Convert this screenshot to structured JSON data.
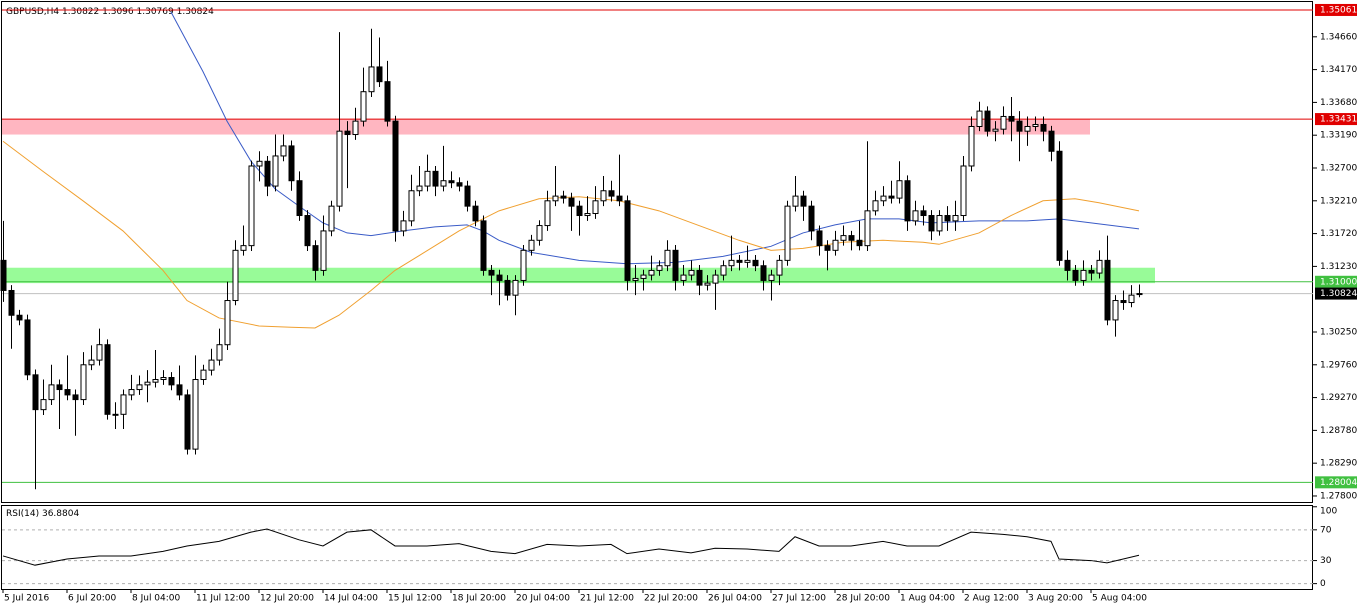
{
  "chart_data": {
    "type": "candlestick",
    "symbol": "GBPUSD,H4",
    "categories": [
      "5 Jul 2016",
      null,
      null,
      null,
      null,
      null,
      null,
      null,
      "6 Jul 20:00",
      null,
      null,
      null,
      null,
      null,
      null,
      null,
      "8 Jul 04:00",
      null,
      null,
      null,
      null,
      null,
      null,
      null,
      "11 Jul 12:00",
      null,
      null,
      null,
      null,
      null,
      null,
      null,
      "12 Jul 20:00",
      null,
      null,
      null,
      null,
      null,
      null,
      null,
      "14 Jul 04:00",
      null,
      null,
      null,
      null,
      null,
      null,
      null,
      "15 Jul 12:00",
      null,
      null,
      null,
      null,
      null,
      null,
      null,
      "18 Jul 20:00",
      null,
      null,
      null,
      null,
      null,
      null,
      null,
      "20 Jul 04:00",
      null,
      null,
      null,
      null,
      null,
      null,
      null,
      "21 Jul 12:00",
      null,
      null,
      null,
      null,
      null,
      null,
      null,
      "22 Jul 20:00",
      null,
      null,
      null,
      null,
      null,
      null,
      null,
      "26 Jul 04:00",
      null,
      null,
      null,
      null,
      null,
      null,
      null,
      "27 Jul 12:00",
      null,
      null,
      null,
      null,
      null,
      null,
      null,
      "28 Jul 20:00",
      null,
      null,
      null,
      null,
      null,
      null,
      null,
      "1 Aug 04:00",
      null,
      null,
      null,
      null,
      null,
      null,
      null,
      "2 Aug 12:00",
      null,
      null,
      null,
      null,
      null,
      null,
      null,
      "3 Aug 20:00",
      null,
      null,
      null,
      null,
      null,
      null,
      null,
      "5 Aug 04:00",
      null,
      null,
      null,
      null,
      null,
      null
    ],
    "candles": [
      [
        1.3132,
        1.3191,
        1.307,
        1.3087
      ],
      [
        1.3087,
        1.3095,
        1.3,
        1.305
      ],
      [
        1.305,
        1.3058,
        1.3035,
        1.3043
      ],
      [
        1.3043,
        1.3051,
        1.2953,
        1.2961
      ],
      [
        1.2961,
        1.2969,
        1.279,
        1.2909
      ],
      [
        1.2909,
        1.2954,
        1.2901,
        1.2924
      ],
      [
        1.2924,
        1.2976,
        1.2916,
        1.2946
      ],
      [
        1.2946,
        1.2954,
        1.288,
        1.2939
      ],
      [
        1.2939,
        1.299,
        1.2923,
        1.2931
      ],
      [
        1.2931,
        1.2939,
        1.287,
        1.2924
      ],
      [
        1.2924,
        1.2995,
        1.2916,
        1.2976
      ],
      [
        1.2976,
        1.3005,
        1.2968,
        1.2983
      ],
      [
        1.2983,
        1.303,
        1.2975,
        1.3006
      ],
      [
        1.3006,
        1.3014,
        1.2894,
        1.2902
      ],
      [
        1.2902,
        1.292,
        1.288,
        1.2902
      ],
      [
        1.2902,
        1.2939,
        1.288,
        1.2931
      ],
      [
        1.2931,
        1.2961,
        1.2923,
        1.2939
      ],
      [
        1.2939,
        1.296,
        1.2931,
        1.2946
      ],
      [
        1.2946,
        1.2968,
        1.292,
        1.295
      ],
      [
        1.295,
        1.2998,
        1.2942,
        1.2954
      ],
      [
        1.2954,
        1.2968,
        1.2946,
        1.2957
      ],
      [
        1.2957,
        1.2965,
        1.2938,
        1.2946
      ],
      [
        1.2946,
        1.2975,
        1.2923,
        1.2931
      ],
      [
        1.2931,
        1.2939,
        1.2842,
        1.285
      ],
      [
        1.285,
        1.299,
        1.2842,
        1.2954
      ],
      [
        1.2954,
        1.2976,
        1.2946,
        1.2968
      ],
      [
        1.2968,
        1.3,
        1.296,
        1.2983
      ],
      [
        1.2983,
        1.303,
        1.2975,
        1.3006
      ],
      [
        1.3006,
        1.31,
        1.2998,
        1.3072
      ],
      [
        1.3072,
        1.3162,
        1.3065,
        1.3147
      ],
      [
        1.3147,
        1.3184,
        1.3139,
        1.3154
      ],
      [
        1.3154,
        1.3281,
        1.3146,
        1.3273
      ],
      [
        1.3273,
        1.3295,
        1.325,
        1.328
      ],
      [
        1.328,
        1.3288,
        1.3228,
        1.3243
      ],
      [
        1.3243,
        1.332,
        1.3235,
        1.3288
      ],
      [
        1.3288,
        1.332,
        1.328,
        1.3303
      ],
      [
        1.3303,
        1.3311,
        1.3236,
        1.3251
      ],
      [
        1.3251,
        1.3265,
        1.3191,
        1.3199
      ],
      [
        1.3199,
        1.3207,
        1.3146,
        1.3154
      ],
      [
        1.3154,
        1.3162,
        1.3102,
        1.3117
      ],
      [
        1.3117,
        1.3199,
        1.3109,
        1.3176
      ],
      [
        1.3176,
        1.3221,
        1.3168,
        1.3213
      ],
      [
        1.3213,
        1.3473,
        1.3205,
        1.3325
      ],
      [
        1.3325,
        1.334,
        1.324,
        1.332
      ],
      [
        1.332,
        1.336,
        1.3312,
        1.334
      ],
      [
        1.334,
        1.342,
        1.3332,
        1.3384
      ],
      [
        1.3384,
        1.3478,
        1.3376,
        1.3421
      ],
      [
        1.3421,
        1.3465,
        1.3391,
        1.3399
      ],
      [
        1.3399,
        1.343,
        1.3332,
        1.334
      ],
      [
        1.334,
        1.3348,
        1.316,
        1.3176
      ],
      [
        1.3176,
        1.3206,
        1.3168,
        1.3191
      ],
      [
        1.3191,
        1.326,
        1.3183,
        1.3236
      ],
      [
        1.3236,
        1.3273,
        1.3228,
        1.3243
      ],
      [
        1.3243,
        1.329,
        1.3235,
        1.3265
      ],
      [
        1.3265,
        1.3273,
        1.3228,
        1.3243
      ],
      [
        1.3243,
        1.3303,
        1.3235,
        1.3251
      ],
      [
        1.3251,
        1.3265,
        1.324,
        1.3248
      ],
      [
        1.3248,
        1.3256,
        1.3235,
        1.3243
      ],
      [
        1.3243,
        1.3251,
        1.3205,
        1.3213
      ],
      [
        1.3213,
        1.3221,
        1.3183,
        1.3191
      ],
      [
        1.3191,
        1.3199,
        1.3109,
        1.3117
      ],
      [
        1.3117,
        1.3125,
        1.308,
        1.311
      ],
      [
        1.311,
        1.3118,
        1.3065,
        1.3102
      ],
      [
        1.3102,
        1.311,
        1.3072,
        1.308
      ],
      [
        1.308,
        1.311,
        1.305,
        1.3102
      ],
      [
        1.3102,
        1.3155,
        1.3094,
        1.3147
      ],
      [
        1.3147,
        1.317,
        1.3139,
        1.3162
      ],
      [
        1.3162,
        1.3192,
        1.3154,
        1.3184
      ],
      [
        1.3184,
        1.3236,
        1.3176,
        1.3221
      ],
      [
        1.3221,
        1.3273,
        1.3213,
        1.3228
      ],
      [
        1.3228,
        1.3236,
        1.3217,
        1.3225
      ],
      [
        1.3225,
        1.3233,
        1.3176,
        1.3213
      ],
      [
        1.3213,
        1.3221,
        1.3169,
        1.3199
      ],
      [
        1.3199,
        1.3228,
        1.3191,
        1.3202
      ],
      [
        1.3202,
        1.3243,
        1.3194,
        1.3221
      ],
      [
        1.3221,
        1.3258,
        1.3213,
        1.3236
      ],
      [
        1.3236,
        1.3251,
        1.322,
        1.3228
      ],
      [
        1.3228,
        1.329,
        1.3213,
        1.3221
      ],
      [
        1.3221,
        1.3229,
        1.3087,
        1.3102
      ],
      [
        1.3102,
        1.3125,
        1.308,
        1.3105
      ],
      [
        1.3105,
        1.3118,
        1.3087,
        1.311
      ],
      [
        1.311,
        1.3139,
        1.3102,
        1.3117
      ],
      [
        1.3117,
        1.3132,
        1.3109,
        1.3124
      ],
      [
        1.3124,
        1.3162,
        1.3116,
        1.3147
      ],
      [
        1.3147,
        1.3155,
        1.3087,
        1.3102
      ],
      [
        1.3102,
        1.3125,
        1.3094,
        1.311
      ],
      [
        1.311,
        1.3132,
        1.3102,
        1.3117
      ],
      [
        1.3117,
        1.3125,
        1.308,
        1.3095
      ],
      [
        1.3095,
        1.311,
        1.3087,
        1.3098
      ],
      [
        1.3098,
        1.3118,
        1.3058,
        1.311
      ],
      [
        1.311,
        1.3132,
        1.3102,
        1.3124
      ],
      [
        1.3124,
        1.3169,
        1.3116,
        1.3132
      ],
      [
        1.3132,
        1.314,
        1.3117,
        1.3129
      ],
      [
        1.3129,
        1.3154,
        1.3121,
        1.3132
      ],
      [
        1.3132,
        1.314,
        1.3116,
        1.3124
      ],
      [
        1.3124,
        1.3132,
        1.3087,
        1.3102
      ],
      [
        1.3102,
        1.3118,
        1.3072,
        1.311
      ],
      [
        1.311,
        1.314,
        1.3095,
        1.3132
      ],
      [
        1.3132,
        1.3221,
        1.3124,
        1.3213
      ],
      [
        1.3213,
        1.3258,
        1.3205,
        1.3228
      ],
      [
        1.3228,
        1.3236,
        1.3191,
        1.3213
      ],
      [
        1.3213,
        1.3221,
        1.3162,
        1.3176
      ],
      [
        1.3176,
        1.3184,
        1.3139,
        1.3154
      ],
      [
        1.3154,
        1.3162,
        1.3117,
        1.3147
      ],
      [
        1.3147,
        1.3176,
        1.3139,
        1.3162
      ],
      [
        1.3162,
        1.3184,
        1.3154,
        1.3169
      ],
      [
        1.3169,
        1.3176,
        1.3147,
        1.3162
      ],
      [
        1.3162,
        1.3191,
        1.3147,
        1.3154
      ],
      [
        1.3154,
        1.331,
        1.3146,
        1.3206
      ],
      [
        1.3206,
        1.3236,
        1.3199,
        1.3221
      ],
      [
        1.3221,
        1.3243,
        1.3213,
        1.3228
      ],
      [
        1.3228,
        1.3251,
        1.3217,
        1.3225
      ],
      [
        1.3225,
        1.328,
        1.3217,
        1.3251
      ],
      [
        1.3251,
        1.3259,
        1.3176,
        1.3191
      ],
      [
        1.3191,
        1.3221,
        1.3184,
        1.3206
      ],
      [
        1.3206,
        1.3214,
        1.3184,
        1.3199
      ],
      [
        1.3199,
        1.3207,
        1.3162,
        1.3176
      ],
      [
        1.3176,
        1.3207,
        1.3169,
        1.3199
      ],
      [
        1.3199,
        1.3213,
        1.3176,
        1.3191
      ],
      [
        1.3191,
        1.3221,
        1.3176,
        1.3199
      ],
      [
        1.3199,
        1.3288,
        1.3191,
        1.3273
      ],
      [
        1.3273,
        1.3347,
        1.3265,
        1.3332
      ],
      [
        1.3332,
        1.3369,
        1.3325,
        1.3355
      ],
      [
        1.3355,
        1.3362,
        1.3317,
        1.3325
      ],
      [
        1.3325,
        1.334,
        1.331,
        1.3328
      ],
      [
        1.3328,
        1.3362,
        1.332,
        1.3347
      ],
      [
        1.3347,
        1.3376,
        1.331,
        1.334
      ],
      [
        1.334,
        1.3355,
        1.328,
        1.3325
      ],
      [
        1.3325,
        1.3347,
        1.3303,
        1.3332
      ],
      [
        1.3332,
        1.3347,
        1.3325,
        1.3335
      ],
      [
        1.3335,
        1.3347,
        1.331,
        1.3325
      ],
      [
        1.3325,
        1.3333,
        1.328,
        1.3295
      ],
      [
        1.3295,
        1.331,
        1.3124,
        1.3132
      ],
      [
        1.3132,
        1.3147,
        1.3102,
        1.3117
      ],
      [
        1.3117,
        1.3125,
        1.3094,
        1.3102
      ],
      [
        1.3102,
        1.3132,
        1.3094,
        1.3117
      ],
      [
        1.3117,
        1.3125,
        1.3102,
        1.3113
      ],
      [
        1.3113,
        1.3147,
        1.3105,
        1.3132
      ],
      [
        1.3132,
        1.3169,
        1.3035,
        1.3043
      ],
      [
        1.3043,
        1.308,
        1.3018,
        1.3072
      ],
      [
        1.3072,
        1.3087,
        1.3058,
        1.3069
      ],
      [
        1.3069,
        1.3095,
        1.3062,
        1.308
      ],
      [
        1.30822,
        1.3096,
        1.30769,
        1.30824
      ]
    ],
    "up_color": "#ffffff",
    "down_color": "#000000",
    "ylim": [
      1.2771,
      1.3518
    ],
    "yticks": [
      {
        "value": 1.3466,
        "label": "1.34660"
      },
      {
        "value": 1.3417,
        "label": "1.34170"
      },
      {
        "value": 1.3368,
        "label": "1.33680"
      },
      {
        "value": 1.3319,
        "label": "1.33190"
      },
      {
        "value": 1.327,
        "label": "1.32700"
      },
      {
        "value": 1.3221,
        "label": "1.32210"
      },
      {
        "value": 1.3172,
        "label": "1.31720"
      },
      {
        "value": 1.3123,
        "label": "1.31230"
      },
      {
        "value": 1.3025,
        "label": "1.30250"
      },
      {
        "value": 1.2976,
        "label": "1.29760"
      },
      {
        "value": 1.2927,
        "label": "1.29270"
      },
      {
        "value": 1.2878,
        "label": "1.28780"
      },
      {
        "value": 1.2829,
        "label": "1.28290"
      },
      {
        "value": 1.278,
        "label": "1.27800"
      }
    ],
    "levels": [
      {
        "value": 1.35061,
        "color": "#e00000"
      },
      {
        "value": 1.33431,
        "color": "#e00000"
      },
      {
        "value": 1.31,
        "label": "1.31000",
        "color": "#40c040"
      },
      {
        "value": 1.28004,
        "color": "#40c040"
      },
      {
        "value": 1.30824,
        "color": "#000000"
      }
    ],
    "zones": [
      {
        "low": 1.332,
        "high": 1.3343,
        "color": "#ffb6c1"
      },
      {
        "low": 1.3098,
        "high": 1.3121,
        "color": "#98fb98"
      }
    ],
    "series": [
      {
        "color": "#3a5bc7",
        "x": [
          21,
          25,
          28,
          31,
          34,
          37,
          40,
          43,
          46,
          50,
          54,
          58,
          60,
          62,
          66,
          72,
          78,
          84,
          90,
          96,
          100,
          104,
          108,
          112,
          116,
          122,
          128,
          132,
          136,
          142
        ],
        "values": [
          1.3503,
          1.3414,
          1.334,
          1.328,
          1.3239,
          1.3213,
          1.3188,
          1.3173,
          1.3169,
          1.3176,
          1.3182,
          1.3185,
          1.3176,
          1.3162,
          1.3144,
          1.3132,
          1.3127,
          1.3129,
          1.3138,
          1.3153,
          1.3173,
          1.3185,
          1.3194,
          1.3194,
          1.3188,
          1.3191,
          1.3191,
          1.3194,
          1.3188,
          1.3179
        ]
      },
      {
        "color": "#f0a030",
        "x": [
          0,
          5,
          10,
          15,
          20,
          23,
          27,
          32,
          36,
          39,
          42,
          46,
          49,
          52,
          57,
          62,
          67,
          72,
          77,
          82,
          87,
          92,
          96,
          100,
          105,
          110,
          115,
          117,
          122,
          126,
          130,
          134,
          137,
          142
        ],
        "values": [
          1.331,
          1.3265,
          1.3221,
          1.3176,
          1.3117,
          1.3072,
          1.3046,
          1.3034,
          1.3032,
          1.3031,
          1.305,
          1.3087,
          1.3117,
          1.3139,
          1.3176,
          1.3206,
          1.3224,
          1.3227,
          1.3221,
          1.3206,
          1.3184,
          1.3162,
          1.3147,
          1.315,
          1.3159,
          1.3162,
          1.3159,
          1.3156,
          1.3173,
          1.3199,
          1.3221,
          1.3224,
          1.3218,
          1.3206
        ]
      }
    ],
    "rsi": {
      "name": "RSI(14)",
      "color": "#000000",
      "x": [
        0,
        4,
        8,
        12,
        16,
        20,
        23,
        27,
        31,
        33,
        37,
        40,
        43,
        46,
        49,
        53,
        57,
        61,
        64,
        68,
        72,
        76,
        78,
        82,
        86,
        89,
        93,
        97,
        99,
        102,
        106,
        110,
        113,
        117,
        121,
        125,
        128,
        131,
        132,
        136,
        138,
        142
      ],
      "values": [
        36,
        24,
        32,
        36,
        36,
        42,
        49,
        55,
        67,
        71,
        57,
        49,
        67,
        70,
        49,
        49,
        52,
        42,
        39,
        51,
        49,
        51,
        39,
        45,
        40,
        46,
        45,
        42,
        61,
        49,
        49,
        55,
        49,
        49,
        67,
        64,
        61,
        55,
        32,
        30,
        27,
        36.8804
      ],
      "ylim": [
        -7,
        101
      ],
      "yticks": [
        100,
        70,
        30,
        0
      ]
    }
  }
}
